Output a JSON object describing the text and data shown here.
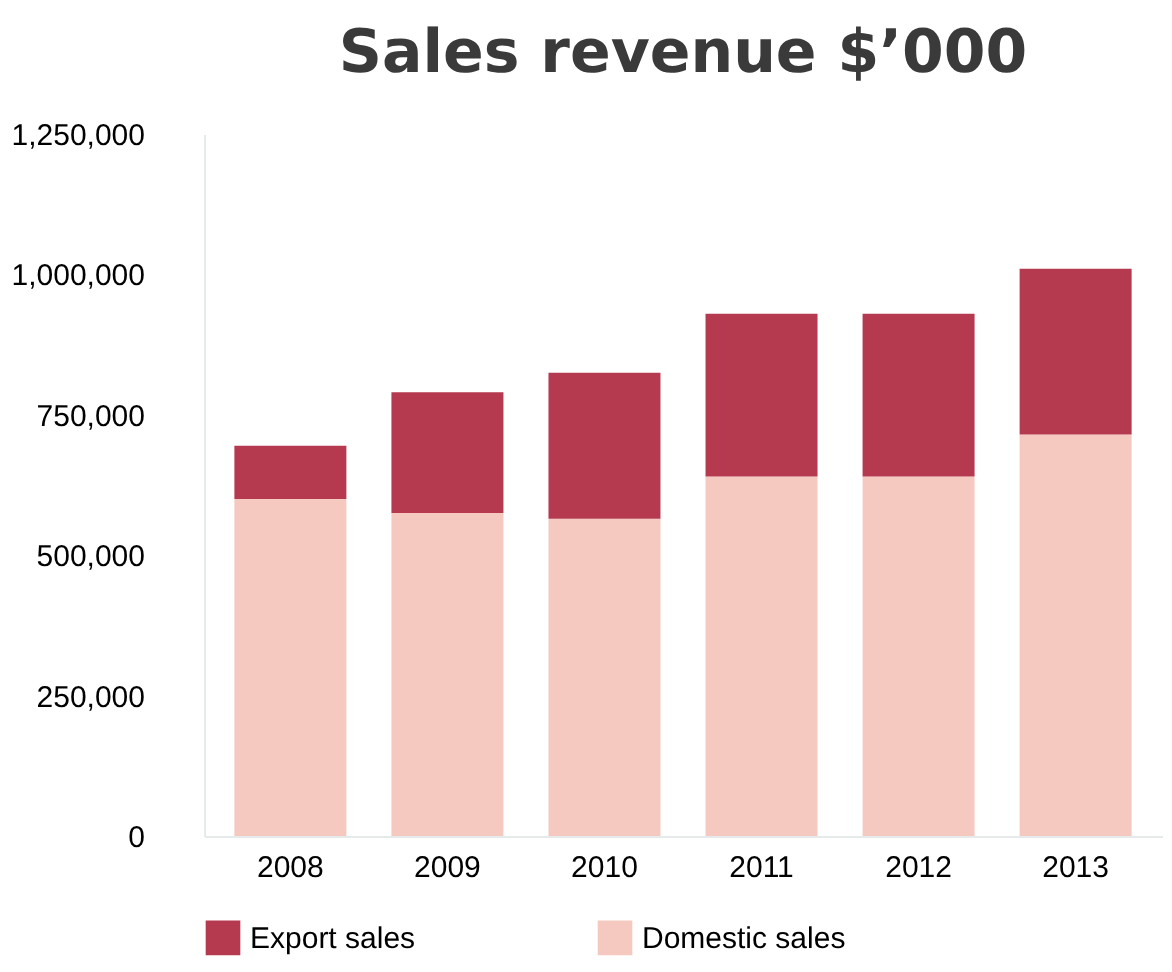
{
  "chart_data": {
    "type": "bar",
    "title": "Sales revenue $’000",
    "stacked": true,
    "categories": [
      "2008",
      "2009",
      "2010",
      "2011",
      "2012",
      "2013"
    ],
    "series": [
      {
        "name": "Domestic sales",
        "color": "#f6c9c0",
        "values": [
          600000,
          575000,
          565000,
          640000,
          640000,
          715000
        ]
      },
      {
        "name": "Export sales",
        "color": "#b5394f",
        "values": [
          95000,
          215000,
          260000,
          290000,
          290000,
          295000
        ]
      }
    ],
    "ylim": [
      0,
      1250000
    ],
    "yticks": [
      0,
      {
        "value": 250000,
        "label": "250,000"
      },
      {
        "value": 500000,
        "label": "500,000"
      },
      {
        "value": 750000,
        "label": "750,000"
      },
      {
        "value": 1000000,
        "label": "1,000,000"
      },
      {
        "value": 1250000,
        "label": "1,250,000"
      }
    ],
    "grid": false,
    "legend": "bottom"
  }
}
